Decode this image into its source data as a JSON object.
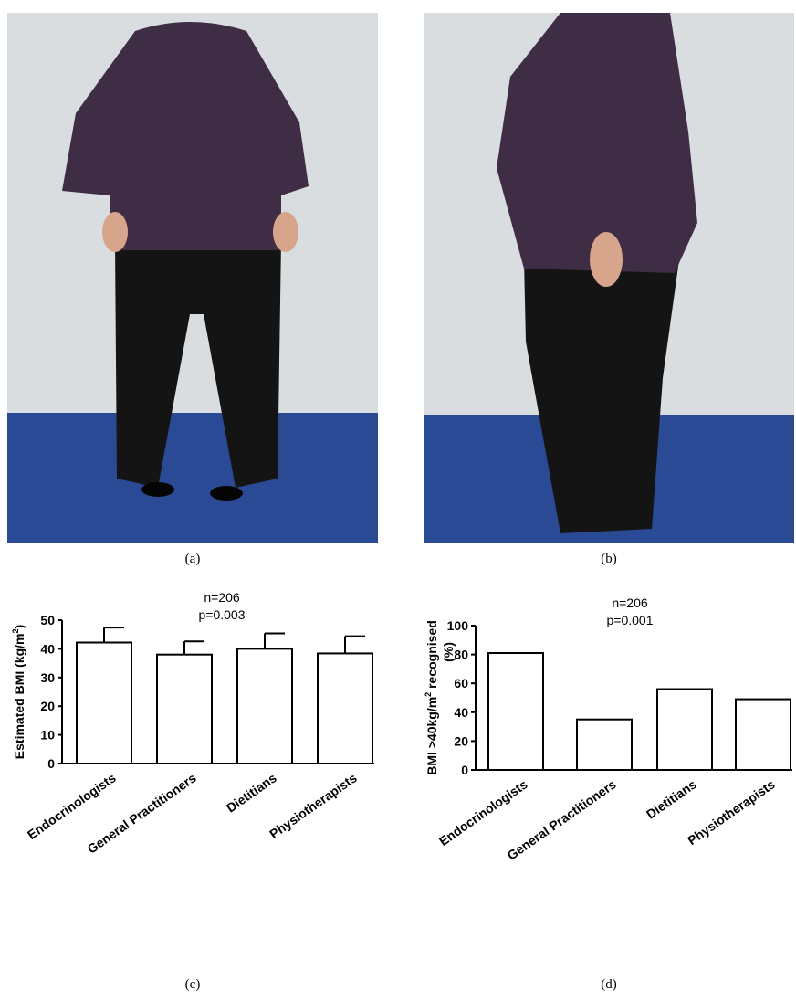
{
  "figure": {
    "captions": {
      "a": "(a)",
      "b": "(b)",
      "c": "(c)",
      "d": "(d)"
    }
  },
  "photos": [
    {
      "panel": "a",
      "subject": "front view photograph"
    },
    {
      "panel": "b",
      "subject": "side view photograph"
    }
  ],
  "colors": {
    "wall": "#d9dde0",
    "floor": "#2a4a96",
    "shirt": "#3f2d45",
    "trousers": "#141414",
    "skin": "#d7a58c",
    "bar_fill": "#ffffff",
    "ink": "#000000"
  },
  "chart_data": [
    {
      "panel": "c",
      "type": "bar",
      "annotation": [
        "n=206",
        "p=0.003"
      ],
      "ylabel_parts": [
        "Estimated BMI (kg/m",
        "2",
        ")"
      ],
      "categories": [
        "Endocrinologists",
        "General Practitioners",
        "Dietitians",
        "Physiotherapists"
      ],
      "values": [
        42.2,
        38.0,
        40.0,
        38.4
      ],
      "errors": [
        5.2,
        4.6,
        5.4,
        6.0
      ],
      "ylim": [
        0,
        50
      ],
      "yticks": [
        "0",
        "10",
        "20",
        "30",
        "40",
        "50"
      ],
      "grid": false,
      "legend": "none"
    },
    {
      "panel": "d",
      "type": "bar",
      "annotation": [
        "n=206",
        "p=0.001"
      ],
      "ylabel_parts": [
        "BMI >40kg/m",
        "2",
        " recognised"
      ],
      "ylabel_line2": "(%)",
      "categories": [
        "Endocrinologists",
        "General Practitioners",
        "Dietitians",
        "Physiotherapists"
      ],
      "values": [
        81,
        35,
        56,
        49
      ],
      "ylim": [
        0,
        100
      ],
      "yticks": [
        "0",
        "20",
        "40",
        "60",
        "80",
        "100"
      ],
      "grid": false,
      "legend": "none"
    }
  ]
}
